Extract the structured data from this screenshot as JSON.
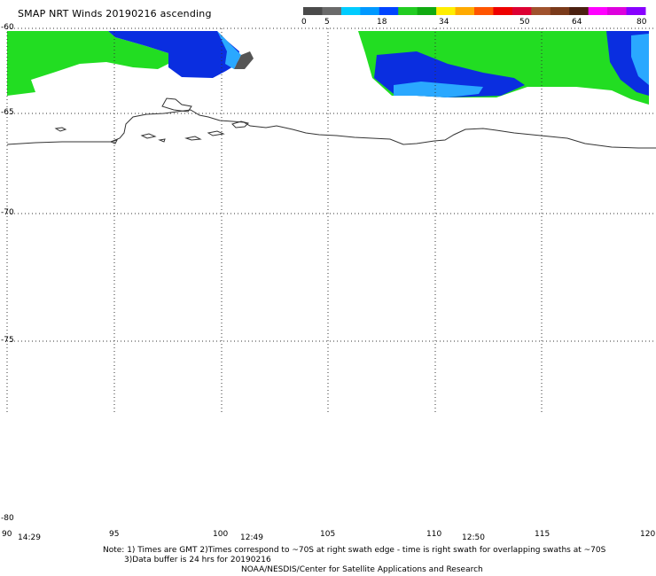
{
  "title": "SMAP NRT Winds 20190216 ascending",
  "colorbar": {
    "labels": [
      "0",
      "5",
      "18",
      "34",
      "50",
      "64",
      "80"
    ],
    "segments": [
      "#4a4a4a",
      "#6a6a6a",
      "#00ccff",
      "#0099ff",
      "#0044ff",
      "#22cc22",
      "#11aa11",
      "#ffee00",
      "#ffaa00",
      "#ff5500",
      "#ee0000",
      "#dd0033",
      "#a0522d",
      "#7a3a1a",
      "#4a2010",
      "#ff00ff",
      "#dd00dd",
      "#8800ff"
    ]
  },
  "latitudes": [
    "-60",
    "-65",
    "-70",
    "-75",
    "-80"
  ],
  "longitudes": [
    "90",
    "95",
    "100",
    "105",
    "110",
    "115",
    "120"
  ],
  "times": [
    "14:29",
    "12:49",
    "12:50"
  ],
  "notes": {
    "line1": "Note: 1) Times are GMT 2)Times correspond to ~70S at right swath edge - time is right swath for overlapping swaths at ~70S",
    "line2": "3)Data buffer is 24 hrs for 20190216",
    "line3": "NOAA/NESDIS/Center for Satellite Applications and Research"
  },
  "colors": {
    "green": "#22dd22",
    "dark_blue": "#0a2ee0",
    "light_blue": "#2aa8ff",
    "cyan": "#18d8f0",
    "gray": "#555555"
  }
}
